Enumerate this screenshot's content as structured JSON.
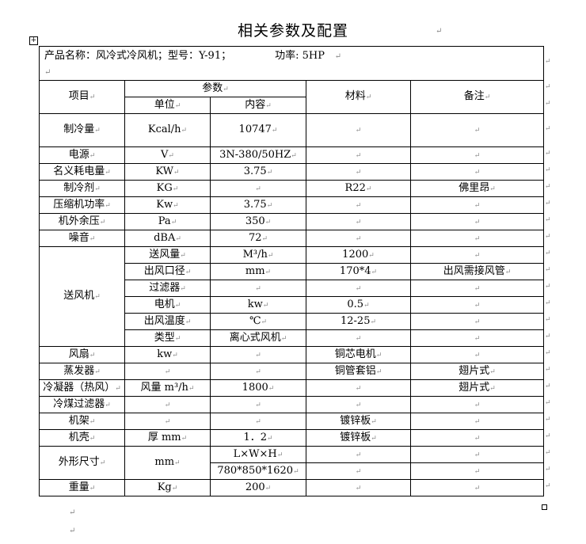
{
  "document": {
    "title": "相关参数及配置",
    "product_line": {
      "name_label": "产品名称：风冷式冷风机；型号：Y-91；",
      "power_label": "功率: 5HP"
    },
    "table": {
      "header": {
        "item": "项目",
        "params": "参数",
        "unit": "单位",
        "content": "内容",
        "material": "材料",
        "remark": "备注"
      },
      "rows_top": [
        [
          "制冷量",
          "Kcal/h",
          "10747",
          "",
          ""
        ],
        [
          "电源",
          "V",
          "3N-380/50HZ",
          "",
          ""
        ],
        [
          "名义耗电量",
          "KW",
          "3.75",
          "",
          ""
        ],
        [
          "制冷剂",
          "KG",
          "",
          "R22",
          "佛里昂"
        ],
        [
          "压缩机功率",
          "Kw",
          "3.75",
          "",
          ""
        ],
        [
          "机外余压",
          "Pa",
          "350",
          "",
          ""
        ],
        [
          "噪音",
          "dBA",
          "72",
          "",
          ""
        ]
      ],
      "blower": {
        "label": "送风机",
        "rows": [
          [
            "送风量",
            "M³/h",
            "1200",
            ""
          ],
          [
            "出风口径",
            "mm",
            "170*4",
            "出风需接风管"
          ],
          [
            "过滤器",
            "",
            "",
            ""
          ],
          [
            "电机",
            "kw",
            "0.5",
            ""
          ],
          [
            "出风温度",
            "℃",
            "12-25",
            ""
          ],
          [
            "类型",
            "离心式风机",
            "",
            ""
          ]
        ]
      },
      "rows_mid": [
        [
          "风扇",
          "kw",
          "",
          "铜芯电机",
          ""
        ],
        [
          "蒸发器",
          "",
          "",
          "铜管套铝",
          "翅片式"
        ],
        [
          "冷凝器（热风）",
          "风量 m³/h",
          "1800",
          "",
          "翅片式"
        ],
        [
          "冷煤过滤器",
          "",
          "",
          "",
          ""
        ],
        [
          "机架",
          "",
          "",
          "镀锌板",
          ""
        ],
        [
          "机壳",
          "厚 mm",
          "1．2",
          "镀锌板",
          ""
        ]
      ],
      "dimensions": {
        "label": "外形尺寸",
        "unit": "mm",
        "rows": [
          [
            "L×W×H",
            "",
            ""
          ],
          [
            "780*850*1620",
            "",
            ""
          ]
        ]
      },
      "rows_bottom": [
        [
          "重量",
          "Kg",
          "200",
          "",
          ""
        ]
      ]
    }
  }
}
